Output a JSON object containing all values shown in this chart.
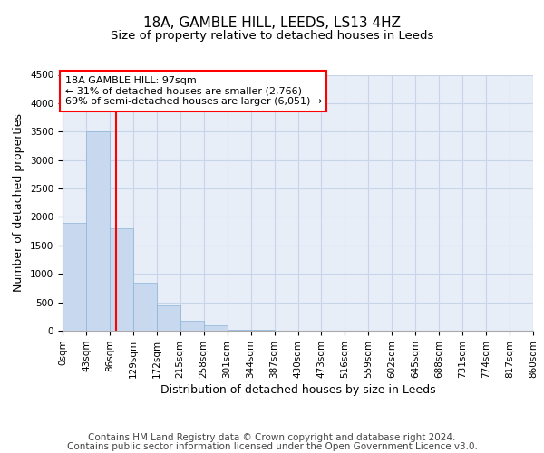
{
  "title": "18A, GAMBLE HILL, LEEDS, LS13 4HZ",
  "subtitle": "Size of property relative to detached houses in Leeds",
  "xlabel": "Distribution of detached houses by size in Leeds",
  "ylabel": "Number of detached properties",
  "bar_color": "#c8d9ef",
  "bar_edge_color": "#8ab4d8",
  "grid_color": "#c8d4e8",
  "background_color": "#e8eef8",
  "annotation_line1": "18A GAMBLE HILL: 97sqm",
  "annotation_line2": "← 31% of detached houses are smaller (2,766)",
  "annotation_line3": "69% of semi-detached houses are larger (6,051) →",
  "property_line_x": 97,
  "bin_edges": [
    0,
    43,
    86,
    129,
    172,
    215,
    258,
    301,
    344,
    387,
    430,
    473,
    516,
    559,
    602,
    645,
    688,
    731,
    774,
    817,
    860
  ],
  "bar_heights": [
    1900,
    3500,
    1800,
    850,
    450,
    175,
    100,
    20,
    20,
    5,
    5,
    0,
    0,
    0,
    0,
    0,
    0,
    0,
    0,
    0
  ],
  "ylim": [
    0,
    4500
  ],
  "yticks": [
    0,
    500,
    1000,
    1500,
    2000,
    2500,
    3000,
    3500,
    4000,
    4500
  ],
  "footer_line1": "Contains HM Land Registry data © Crown copyright and database right 2024.",
  "footer_line2": "Contains public sector information licensed under the Open Government Licence v3.0.",
  "title_fontsize": 11,
  "subtitle_fontsize": 9.5,
  "axis_label_fontsize": 9,
  "tick_fontsize": 7.5,
  "footer_fontsize": 7.5,
  "annotation_fontsize": 8
}
